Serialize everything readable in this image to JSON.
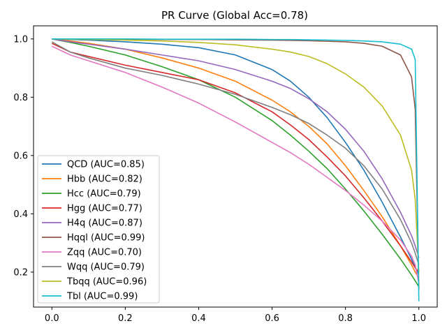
{
  "chart_data": {
    "type": "line",
    "title": "PR Curve (Global Acc=0.78)",
    "xlabel": "",
    "ylabel": "",
    "xlim": [
      -0.05,
      1.05
    ],
    "ylim": [
      0.08,
      1.045
    ],
    "xticks": [
      0.0,
      0.2,
      0.4,
      0.6,
      0.8,
      1.0
    ],
    "xtick_labels": [
      "0.0",
      "0.2",
      "0.4",
      "0.6",
      "0.8",
      "1.0"
    ],
    "yticks": [
      0.2,
      0.4,
      0.6,
      0.8,
      1.0
    ],
    "ytick_labels": [
      "0.2",
      "0.4",
      "0.6",
      "0.8",
      "1.0"
    ],
    "grid": false,
    "legend_position": "lower-left",
    "x": [
      0.0,
      0.05,
      0.1,
      0.2,
      0.3,
      0.4,
      0.5,
      0.6,
      0.65,
      0.7,
      0.75,
      0.8,
      0.85,
      0.9,
      0.95,
      0.98,
      0.99,
      1.0
    ],
    "series": [
      {
        "name": "QCD (AUC=0.85)",
        "color": "#1f77b4",
        "values": [
          1.0,
          0.998,
          0.996,
          0.99,
          0.982,
          0.97,
          0.945,
          0.895,
          0.855,
          0.8,
          0.73,
          0.645,
          0.55,
          0.44,
          0.32,
          0.245,
          0.215,
          0.19
        ]
      },
      {
        "name": "Hbb (AUC=0.82)",
        "color": "#ff7f0e",
        "values": [
          1.0,
          0.993,
          0.985,
          0.965,
          0.935,
          0.9,
          0.855,
          0.79,
          0.75,
          0.7,
          0.64,
          0.565,
          0.48,
          0.39,
          0.29,
          0.225,
          0.2,
          0.18
        ]
      },
      {
        "name": "Hcc (AUC=0.79)",
        "color": "#2ca02c",
        "values": [
          1.0,
          0.988,
          0.975,
          0.945,
          0.905,
          0.86,
          0.8,
          0.72,
          0.67,
          0.615,
          0.555,
          0.485,
          0.41,
          0.33,
          0.245,
          0.19,
          0.17,
          0.15
        ]
      },
      {
        "name": "Hgg (AUC=0.77)",
        "color": "#d62728",
        "values": [
          0.985,
          0.955,
          0.94,
          0.91,
          0.885,
          0.86,
          0.815,
          0.75,
          0.705,
          0.655,
          0.595,
          0.53,
          0.455,
          0.375,
          0.29,
          0.235,
          0.215,
          0.2
        ]
      },
      {
        "name": "H4q (AUC=0.87)",
        "color": "#9467bd",
        "values": [
          1.0,
          0.99,
          0.982,
          0.965,
          0.945,
          0.925,
          0.895,
          0.855,
          0.83,
          0.795,
          0.75,
          0.69,
          0.615,
          0.52,
          0.405,
          0.325,
          0.29,
          0.25
        ]
      },
      {
        "name": "Hqql (AUC=0.99)",
        "color": "#8c564b",
        "values": [
          1.0,
          0.999,
          0.999,
          0.999,
          0.998,
          0.998,
          0.997,
          0.996,
          0.995,
          0.994,
          0.992,
          0.99,
          0.985,
          0.975,
          0.945,
          0.87,
          0.76,
          0.14
        ]
      },
      {
        "name": "Zqq (AUC=0.70)",
        "color": "#e377c2",
        "values": [
          0.975,
          0.945,
          0.925,
          0.885,
          0.835,
          0.78,
          0.715,
          0.645,
          0.61,
          0.57,
          0.525,
          0.48,
          0.43,
          0.375,
          0.31,
          0.255,
          0.225,
          0.16
        ]
      },
      {
        "name": "Wqq (AUC=0.79)",
        "color": "#7f7f7f",
        "values": [
          0.99,
          0.955,
          0.935,
          0.9,
          0.875,
          0.845,
          0.81,
          0.765,
          0.74,
          0.71,
          0.67,
          0.625,
          0.565,
          0.485,
          0.38,
          0.3,
          0.265,
          0.225
        ]
      },
      {
        "name": "Tbqq (AUC=0.96)",
        "color": "#bcbd22",
        "values": [
          1.0,
          0.999,
          0.998,
          0.996,
          0.993,
          0.988,
          0.98,
          0.965,
          0.955,
          0.94,
          0.915,
          0.88,
          0.835,
          0.77,
          0.67,
          0.55,
          0.45,
          0.2
        ]
      },
      {
        "name": "Tbl (AUC=0.99)",
        "color": "#17becf",
        "values": [
          1.0,
          1.0,
          1.0,
          1.0,
          0.999,
          0.999,
          0.999,
          0.998,
          0.998,
          0.997,
          0.996,
          0.995,
          0.993,
          0.99,
          0.982,
          0.965,
          0.93,
          0.1
        ]
      }
    ]
  }
}
